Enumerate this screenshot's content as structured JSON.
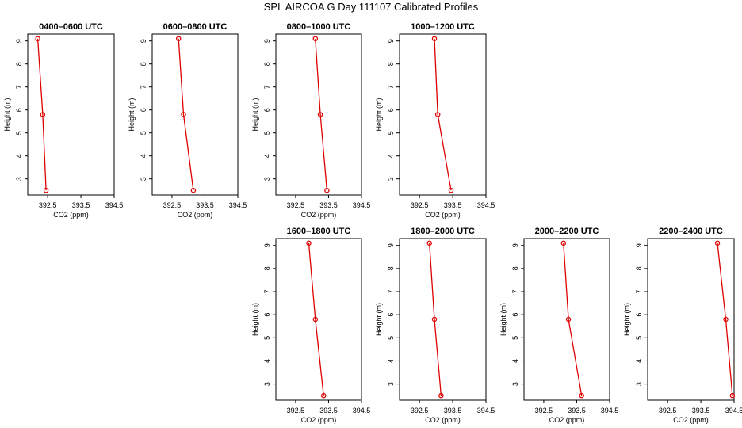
{
  "title": "SPL AIRCOA G  Day 111107  Calibrated Profiles",
  "chart_data": [
    {
      "type": "line",
      "title": "0400–0600 UTC",
      "xlabel": "CO2 (ppm)",
      "ylabel": "Height (m)",
      "xlim": [
        391.9,
        394.5
      ],
      "ylim": [
        2.3,
        9.3
      ],
      "xticks": [
        "392.5",
        "393.5",
        "394.5"
      ],
      "yticks": [
        "3",
        "4",
        "5",
        "6",
        "7",
        "8",
        "9"
      ],
      "series": [
        {
          "x": [
            392.45,
            392.35,
            392.2
          ],
          "y": [
            2.5,
            5.8,
            9.1
          ],
          "color": "#dd0000"
        }
      ]
    },
    {
      "type": "line",
      "title": "0600–0800 UTC",
      "xlabel": "CO2 (ppm)",
      "ylabel": "Height (m)",
      "xlim": [
        391.9,
        394.5
      ],
      "ylim": [
        2.3,
        9.3
      ],
      "xticks": [
        "392.5",
        "393.5",
        "394.5"
      ],
      "yticks": [
        "3",
        "4",
        "5",
        "6",
        "7",
        "8",
        "9"
      ],
      "series": [
        {
          "x": [
            393.15,
            392.85,
            392.7
          ],
          "y": [
            2.5,
            5.8,
            9.1
          ],
          "color": "#dd0000"
        }
      ]
    },
    {
      "type": "line",
      "title": "0800–1000 UTC",
      "xlabel": "CO2 (ppm)",
      "ylabel": "Height (m)",
      "xlim": [
        391.9,
        394.5
      ],
      "ylim": [
        2.3,
        9.3
      ],
      "xticks": [
        "392.5",
        "393.5",
        "394.5"
      ],
      "yticks": [
        "3",
        "4",
        "5",
        "6",
        "7",
        "8",
        "9"
      ],
      "series": [
        {
          "x": [
            393.45,
            393.25,
            393.1
          ],
          "y": [
            2.5,
            5.8,
            9.1
          ],
          "color": "#dd0000"
        }
      ]
    },
    {
      "type": "line",
      "title": "1000–1200 UTC",
      "xlabel": "CO2 (ppm)",
      "ylabel": "Height (m)",
      "xlim": [
        391.9,
        394.5
      ],
      "ylim": [
        2.3,
        9.3
      ],
      "xticks": [
        "392.5",
        "393.5",
        "394.5"
      ],
      "yticks": [
        "3",
        "4",
        "5",
        "6",
        "7",
        "8",
        "9"
      ],
      "series": [
        {
          "x": [
            393.45,
            393.05,
            392.95
          ],
          "y": [
            2.5,
            5.8,
            9.1
          ],
          "color": "#dd0000"
        }
      ]
    },
    {
      "type": "line",
      "title": "1600–1800 UTC",
      "xlabel": "CO2 (ppm)",
      "ylabel": "Height (m)",
      "xlim": [
        391.9,
        394.5
      ],
      "ylim": [
        2.3,
        9.3
      ],
      "xticks": [
        "392.5",
        "393.5",
        "394.5"
      ],
      "yticks": [
        "3",
        "4",
        "5",
        "6",
        "7",
        "8",
        "9"
      ],
      "series": [
        {
          "x": [
            393.35,
            393.1,
            392.9
          ],
          "y": [
            2.5,
            5.8,
            9.1
          ],
          "color": "#dd0000"
        }
      ]
    },
    {
      "type": "line",
      "title": "1800–2000 UTC",
      "xlabel": "CO2 (ppm)",
      "ylabel": "Height (m)",
      "xlim": [
        391.9,
        394.5
      ],
      "ylim": [
        2.3,
        9.3
      ],
      "xticks": [
        "392.5",
        "393.5",
        "394.5"
      ],
      "yticks": [
        "3",
        "4",
        "5",
        "6",
        "7",
        "8",
        "9"
      ],
      "series": [
        {
          "x": [
            393.15,
            392.95,
            392.8
          ],
          "y": [
            2.5,
            5.8,
            9.1
          ],
          "color": "#dd0000"
        }
      ]
    },
    {
      "type": "line",
      "title": "2000–2200 UTC",
      "xlabel": "CO2 (ppm)",
      "ylabel": "Height (m)",
      "xlim": [
        391.9,
        394.5
      ],
      "ylim": [
        2.3,
        9.3
      ],
      "xticks": [
        "392.5",
        "393.5",
        "394.5"
      ],
      "yticks": [
        "3",
        "4",
        "5",
        "6",
        "7",
        "8",
        "9"
      ],
      "series": [
        {
          "x": [
            393.65,
            393.25,
            393.1
          ],
          "y": [
            2.5,
            5.8,
            9.1
          ],
          "color": "#dd0000"
        }
      ]
    },
    {
      "type": "line",
      "title": "2200–2400 UTC",
      "xlabel": "CO2 (ppm)",
      "ylabel": "Height (m)",
      "xlim": [
        391.9,
        394.5
      ],
      "ylim": [
        2.3,
        9.3
      ],
      "xticks": [
        "392.5",
        "393.5",
        "394.5"
      ],
      "yticks": [
        "3",
        "4",
        "5",
        "6",
        "7",
        "8",
        "9"
      ],
      "series": [
        {
          "x": [
            394.45,
            394.25,
            394.0
          ],
          "y": [
            2.5,
            5.8,
            9.1
          ],
          "color": "#dd0000"
        }
      ]
    }
  ]
}
